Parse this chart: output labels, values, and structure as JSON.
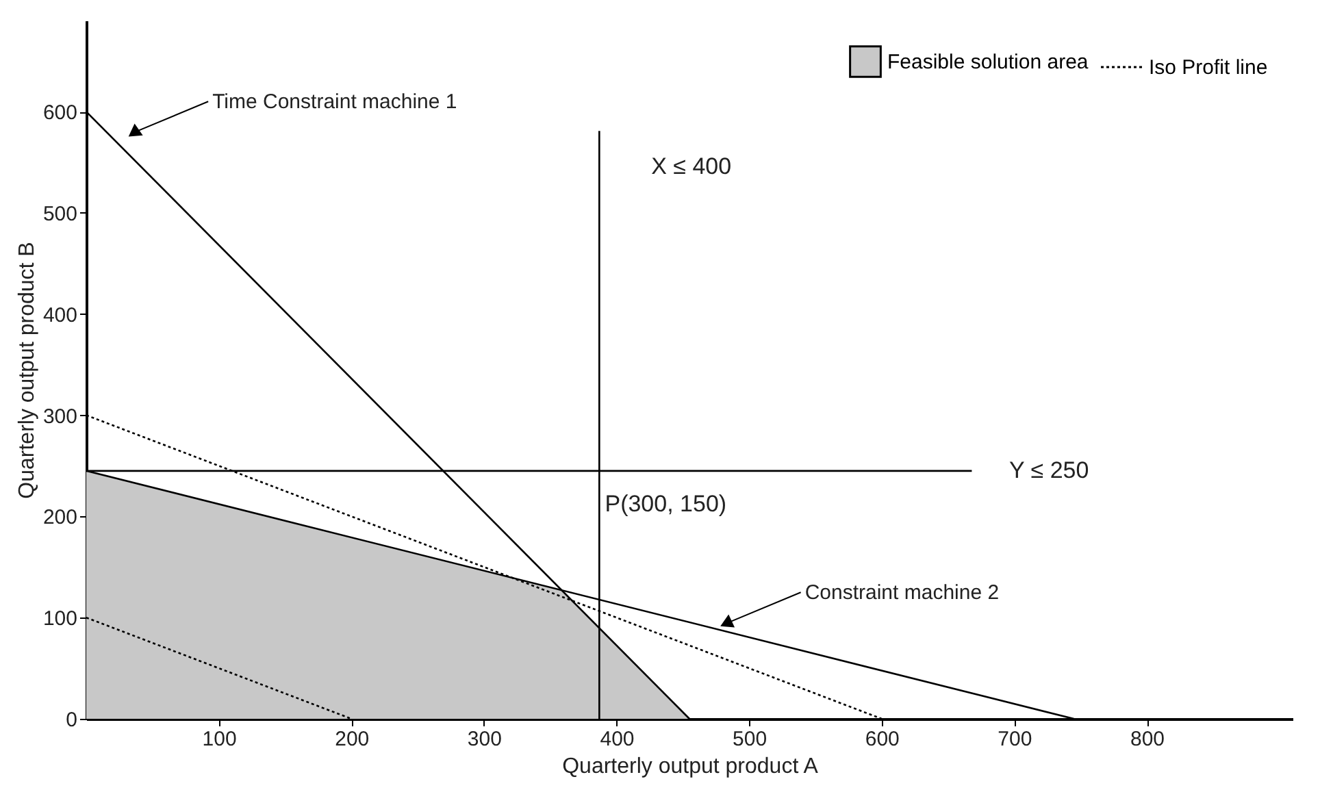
{
  "chart_data": {
    "type": "line",
    "xlabel": "Quarterly output product A",
    "ylabel": "Quarterly output product B",
    "xlim": [
      0,
      910
    ],
    "xticks": [
      100,
      200,
      300,
      400,
      500,
      600,
      700,
      800
    ],
    "ylim": [
      0,
      690
    ],
    "yticks": [
      0,
      100,
      200,
      300,
      400,
      500,
      600
    ],
    "grid": false,
    "legend": "top right",
    "series": [
      {
        "type": "area",
        "name": "Feasible solution area",
        "color": "#c8c8c8",
        "x": [
          0,
          359,
          455
        ],
        "values": [
          245,
          127,
          0
        ]
      },
      {
        "color": "#000000",
        "x": [
          0,
          455
        ],
        "values": [
          600,
          0
        ]
      },
      {
        "color": "#000000",
        "x": [
          0,
          745
        ],
        "values": [
          245,
          0
        ]
      },
      {
        "color": "#000000",
        "x": [
          0,
          668
        ],
        "values": [
          245,
          245
        ]
      },
      {
        "color": "#000000",
        "x": [
          387,
          387
        ],
        "values": [
          0,
          581
        ]
      },
      {
        "name": "Iso Profit line",
        "line_style": "dotted",
        "color": "#000000",
        "x": [
          0,
          600
        ],
        "values": [
          300,
          0
        ]
      },
      {
        "line_style": "dotted",
        "color": "#000000",
        "x": [
          0,
          200
        ],
        "values": [
          100,
          0
        ]
      }
    ],
    "annotations": [
      {
        "text": "Time Constraint machine 1",
        "x": 37,
        "y": 580
      },
      {
        "text": "Constraint machine 2",
        "x": 484,
        "y": 95
      },
      "X ≤ 400",
      "Y ≤ 250",
      "P(300, 150)"
    ]
  }
}
